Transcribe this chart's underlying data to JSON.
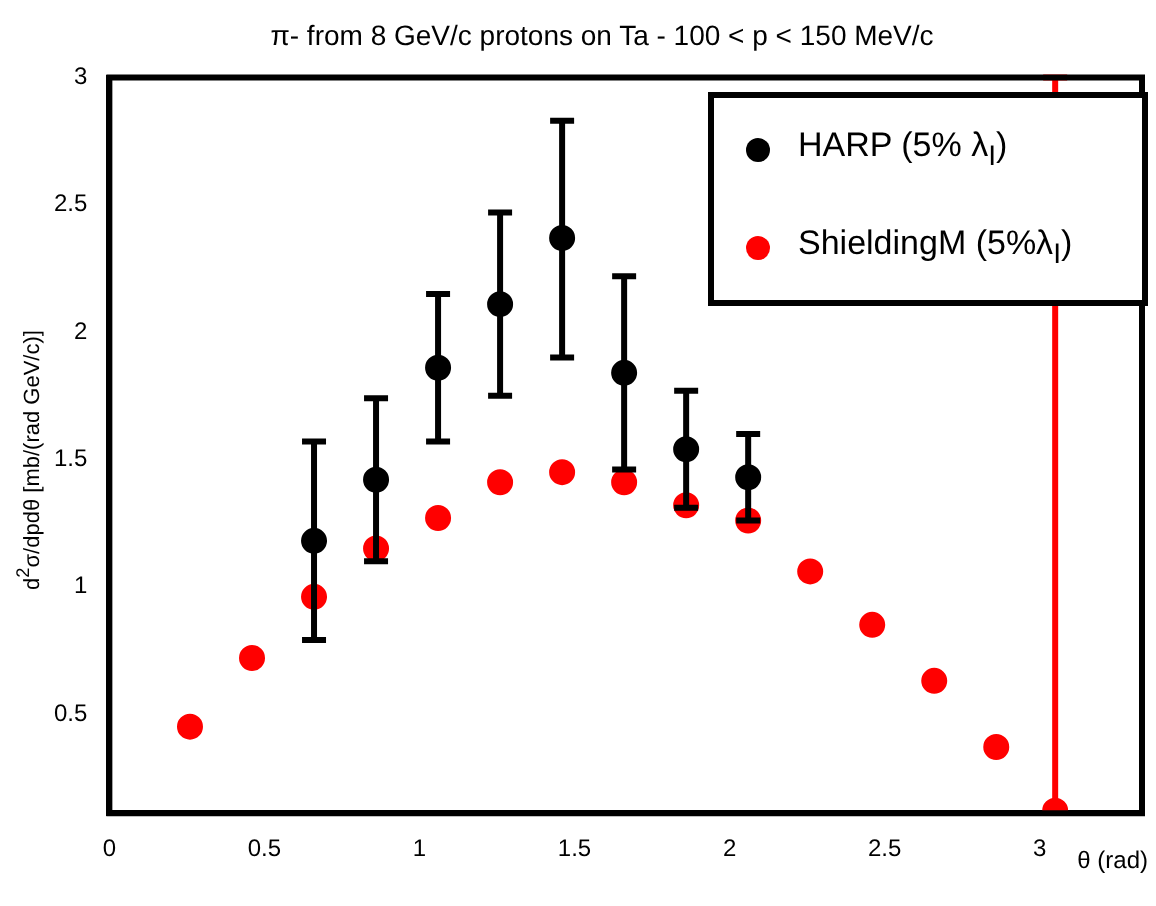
{
  "chart_data": {
    "type": "scatter",
    "title": "π- from 8 GeV/c protons on Ta - 100 < p < 150 MeV/c",
    "xlabel": "θ (rad)",
    "ylabel": "d$^{2}$σ/dpdθ [mb/(rad GeV/c)]",
    "xlim": [
      0,
      3.33
    ],
    "ylim": [
      0.11,
      3
    ],
    "xticks": [
      0,
      0.5,
      1,
      1.5,
      2,
      2.5,
      3
    ],
    "yticks": [
      0.5,
      1,
      1.5,
      2,
      2.5,
      3
    ],
    "grid": false,
    "legend": "top right",
    "marker": "circle",
    "series": [
      {
        "name": "HARP (5% λ$_{I}$)",
        "color": "#000000",
        "x": [
          0.66,
          0.86,
          1.06,
          1.26,
          1.46,
          1.66,
          1.86,
          2.06
        ],
        "values": [
          1.18,
          1.42,
          1.86,
          2.11,
          2.37,
          1.84,
          1.54,
          1.43
        ],
        "errors": [
          [
            0.79,
            1.57
          ],
          [
            1.1,
            1.74
          ],
          [
            1.57,
            2.15
          ],
          [
            1.75,
            2.47
          ],
          [
            1.9,
            2.83
          ],
          [
            1.46,
            2.22
          ],
          [
            1.31,
            1.77
          ],
          [
            1.26,
            1.6
          ]
        ]
      },
      {
        "name": "ShieldingM (5%λ$_{I}$)",
        "color": "#ff0000",
        "x": [
          0.26,
          0.46,
          0.66,
          0.86,
          1.06,
          1.26,
          1.46,
          1.66,
          1.86,
          2.06,
          2.26,
          2.46,
          2.66,
          2.86,
          3.05
        ],
        "values": [
          0.45,
          0.72,
          0.96,
          1.15,
          1.27,
          1.41,
          1.45,
          1.41,
          1.32,
          1.26,
          1.06,
          0.85,
          0.63,
          0.37,
          0.12
        ],
        "errors": [
          null,
          null,
          null,
          null,
          null,
          null,
          null,
          null,
          null,
          null,
          null,
          null,
          null,
          null,
          [
            0.12,
            3
          ]
        ]
      }
    ]
  }
}
